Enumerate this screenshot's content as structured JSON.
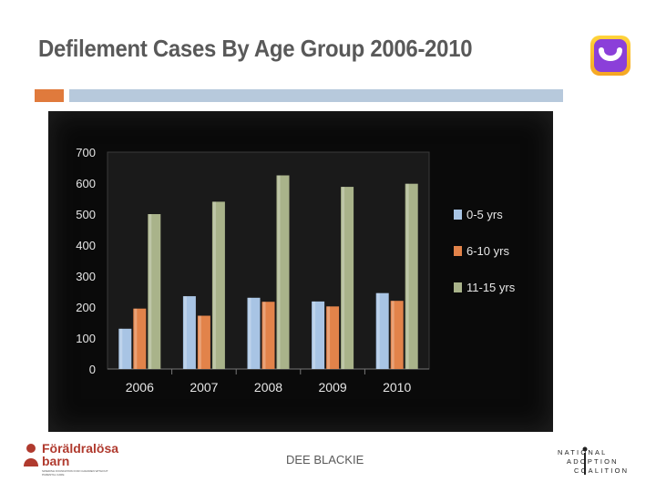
{
  "slide": {
    "title": "Defilement Cases By Age Group 2006-2010",
    "footer": "DEE BLACKIE"
  },
  "logos": {
    "left_line1": "Föräldralösa",
    "left_line2": "barn",
    "left_sub": "SWEDISH FOUNDATION FOR CHILDREN WITHOUT PARENTAL CARE",
    "right_line1": "NATIONAL",
    "right_line2": "ADOPTION",
    "right_line3": "COALITION"
  },
  "colors": {
    "title": "#595959",
    "accent_orange": "#e07a3c",
    "accent_blue": "#b7c9dc",
    "chart_background": "#0a0a0a",
    "series_0_5": "#a8c4e4",
    "series_6_10": "#e2834a",
    "series_11_15": "#a9b38a"
  },
  "chart_data": {
    "type": "bar",
    "categories": [
      "2006",
      "2007",
      "2008",
      "2009",
      "2010"
    ],
    "series": [
      {
        "name": "0-5 yrs",
        "values": [
          130,
          235,
          230,
          218,
          245
        ]
      },
      {
        "name": "6-10 yrs",
        "values": [
          195,
          172,
          217,
          202,
          220
        ]
      },
      {
        "name": "11-15 yrs",
        "values": [
          500,
          540,
          625,
          588,
          598
        ]
      }
    ],
    "yticks": [
      0,
      100,
      200,
      300,
      400,
      500,
      600,
      700
    ],
    "ylim": [
      0,
      700
    ],
    "grid": false,
    "legend": "right"
  }
}
